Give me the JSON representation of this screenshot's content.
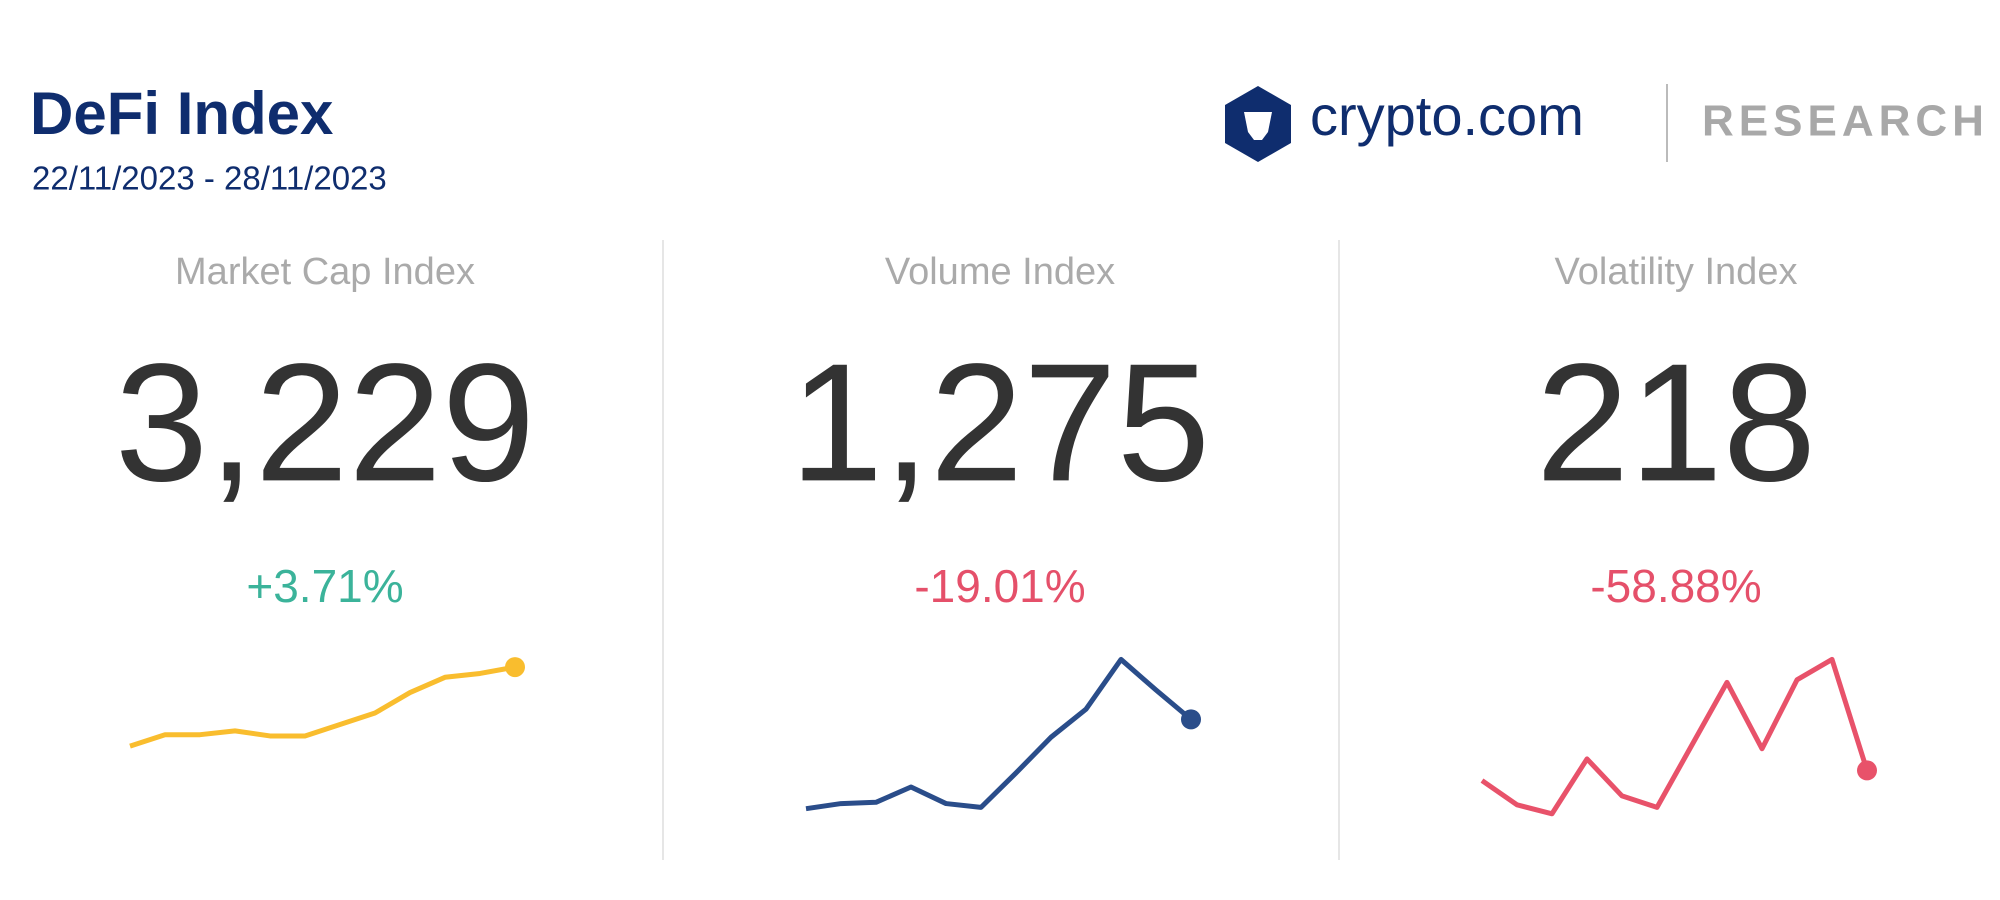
{
  "header": {
    "title": "DeFi Index",
    "date_range": "22/11/2023 - 28/11/2023",
    "brand": "crypto.com",
    "brand_section": "RESEARCH"
  },
  "chart_data": [
    {
      "type": "line",
      "title": "Market Cap Index",
      "value": "3,229",
      "change": "+3.71%",
      "change_color": "#3bb39a",
      "color": "#f9bd2e",
      "values": [
        65,
        74,
        74,
        77,
        73,
        73,
        82,
        91,
        107,
        119,
        122,
        127
      ]
    },
    {
      "type": "line",
      "title": "Volume Index",
      "value": "1,275",
      "change": "-19.01%",
      "change_color": "#e5506a",
      "color": "#2a4d8a",
      "values": [
        16,
        20,
        21,
        33,
        20,
        17,
        44,
        72,
        94,
        133,
        109,
        86
      ]
    },
    {
      "type": "line",
      "title": "Volatility Index",
      "value": "218",
      "change": "-58.88%",
      "change_color": "#e5506a",
      "color": "#e8526a",
      "values": [
        38,
        19,
        12,
        55,
        26,
        17,
        66,
        115,
        63,
        117,
        133,
        46
      ]
    }
  ]
}
